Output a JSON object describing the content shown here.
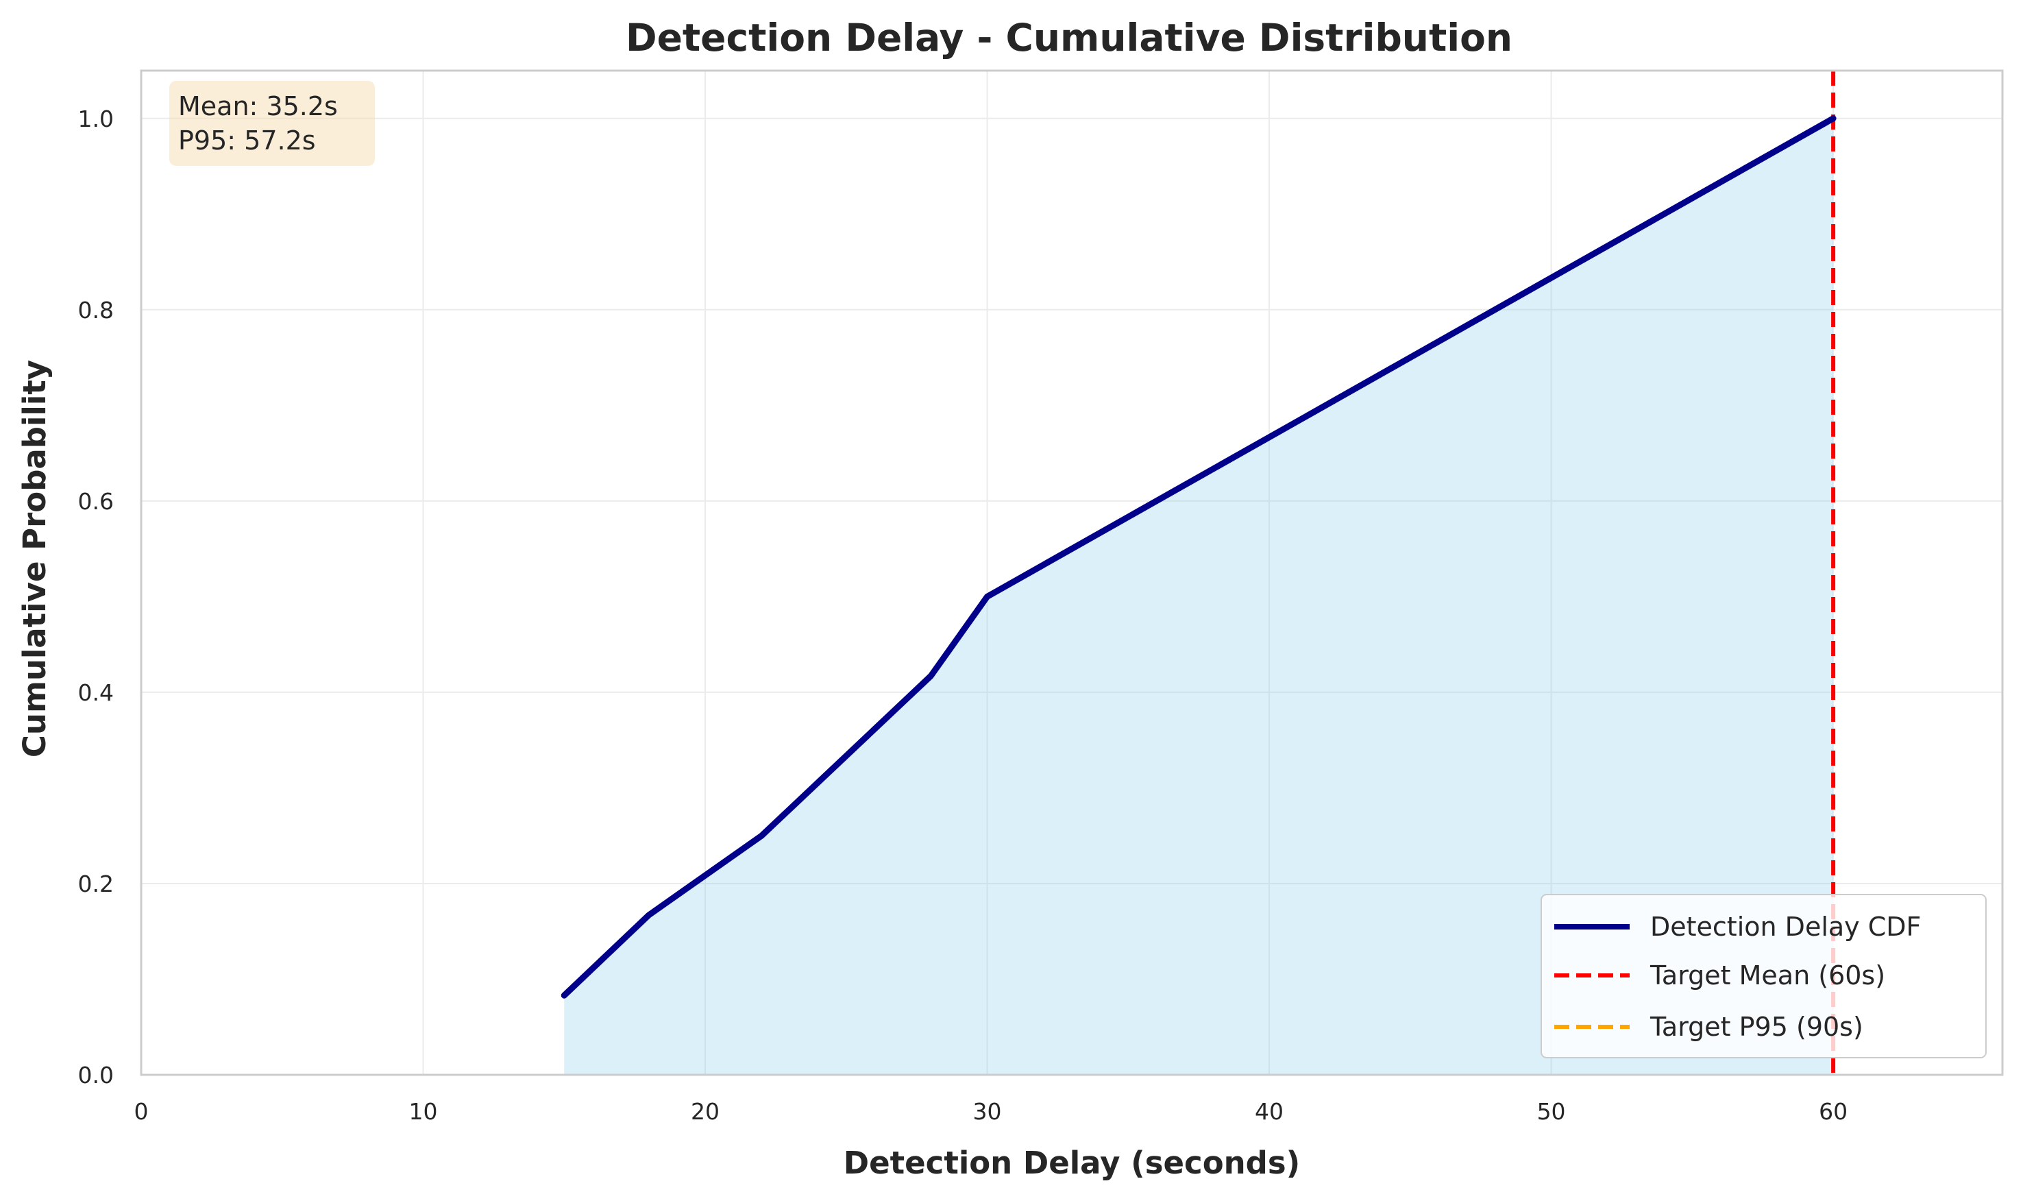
{
  "chart_data": {
    "type": "line",
    "title": "Detection Delay - Cumulative Distribution",
    "xlabel": "Detection Delay (seconds)",
    "ylabel": "Cumulative Probability",
    "xlim": [
      0,
      66
    ],
    "ylim": [
      0,
      1.05
    ],
    "xticks": [
      0,
      10,
      20,
      30,
      40,
      50,
      60
    ],
    "yticks": [
      0.0,
      0.2,
      0.4,
      0.6,
      0.8,
      1.0
    ],
    "xtick_labels": [
      "0",
      "10",
      "20",
      "30",
      "40",
      "50",
      "60"
    ],
    "ytick_labels": [
      "0.0",
      "0.2",
      "0.4",
      "0.6",
      "0.8",
      "1.0"
    ],
    "grid": true,
    "series": [
      {
        "name": "Detection Delay CDF",
        "color": "#00008b",
        "fill_color": "#87ceeb",
        "x": [
          15,
          18,
          22,
          28,
          30,
          60
        ],
        "y": [
          0.083,
          0.167,
          0.25,
          0.417,
          0.5,
          1.0
        ]
      }
    ],
    "reference_lines": [
      {
        "name": "Target Mean (60s)",
        "x": 60,
        "color": "#ff0000",
        "style": "dashed"
      },
      {
        "name": "Target P95 (90s)",
        "x": 90,
        "color": "#ffa500",
        "style": "dashed"
      }
    ],
    "annotation": {
      "lines": [
        "Mean: 35.2s",
        "P95: 57.2s"
      ],
      "background": "#f5deb3",
      "placement": "top-left"
    },
    "legend": {
      "placement": "bottom-right",
      "entries": [
        "Detection Delay CDF",
        "Target Mean (60s)",
        "Target P95 (90s)"
      ]
    }
  }
}
